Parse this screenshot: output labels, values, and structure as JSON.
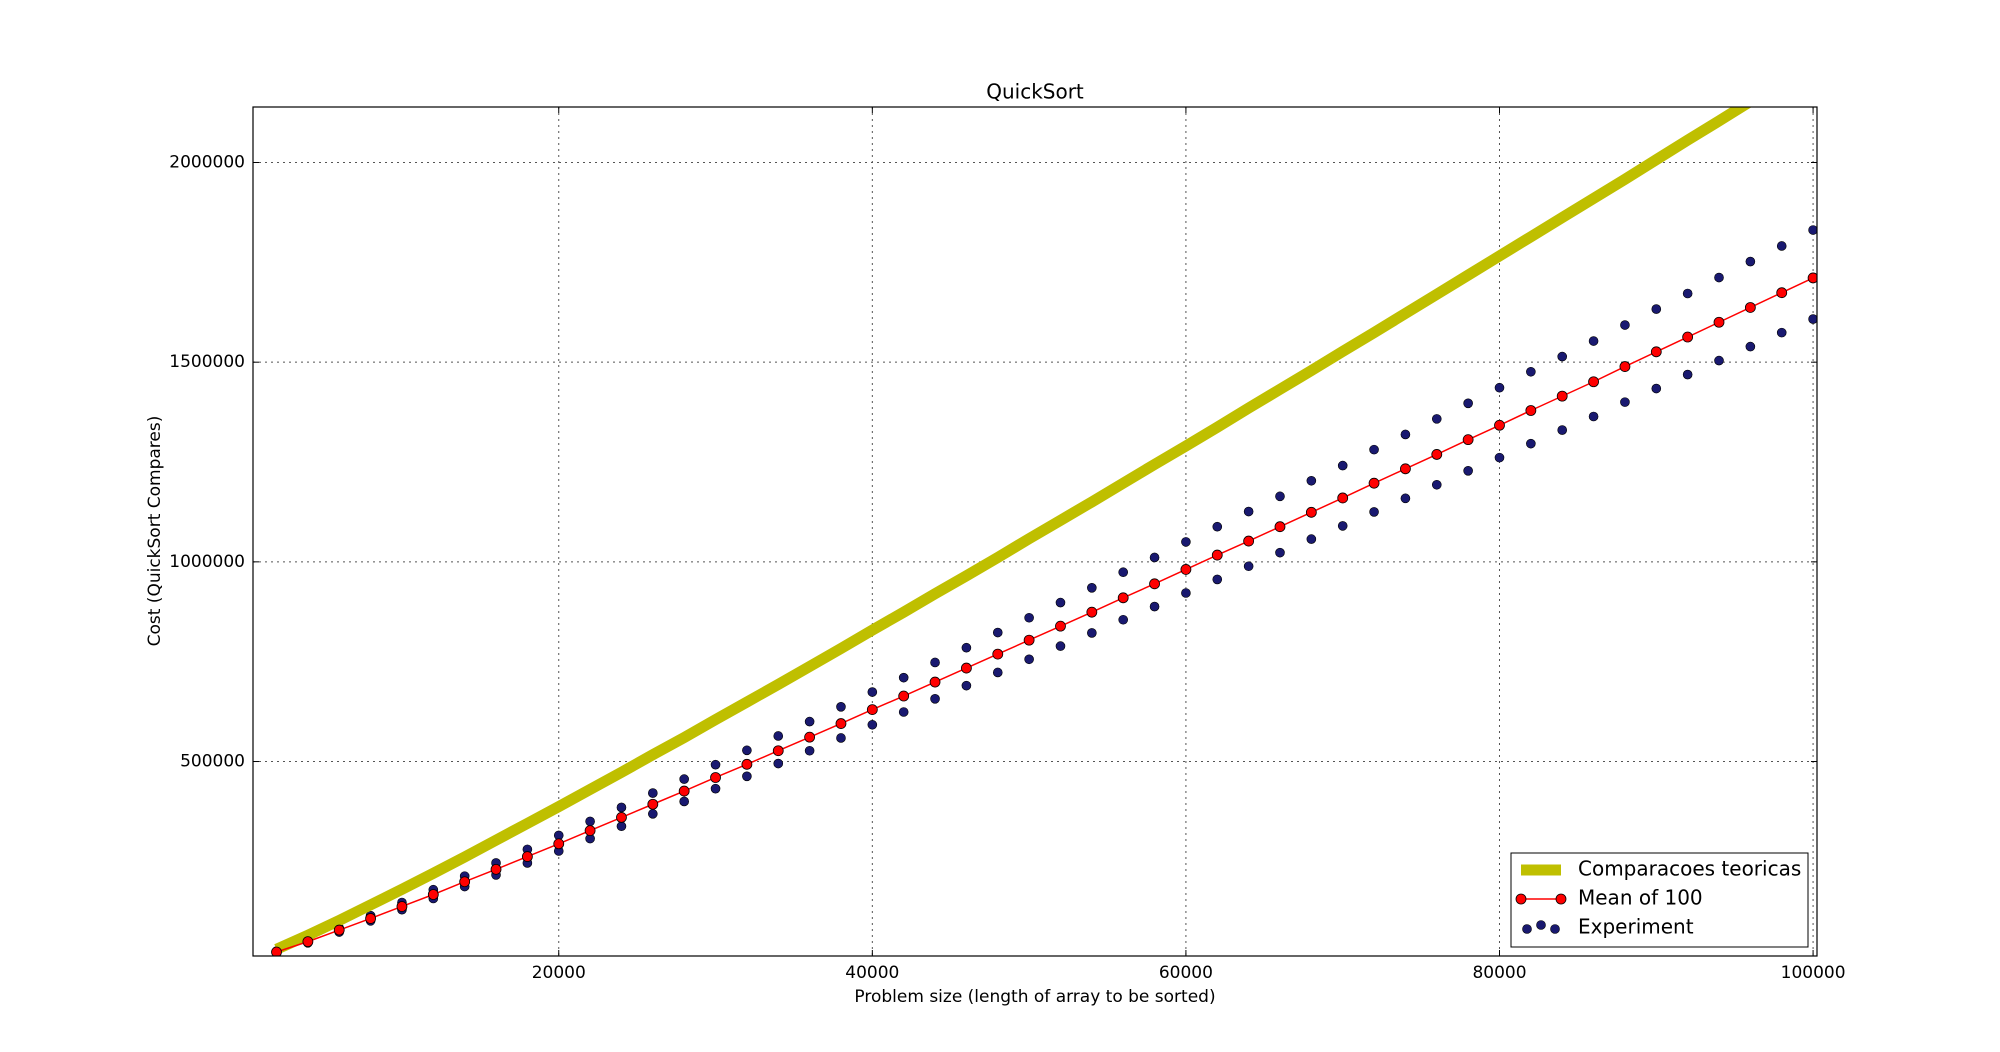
{
  "chart_data": {
    "type": "line",
    "title": "QuickSort",
    "xlabel": "Problem size (length of array to be sorted)",
    "ylabel": "Cost (QuickSort Compares)",
    "xlim": [
      500,
      100250
    ],
    "ylim": [
      13000,
      2139000
    ],
    "xticks": [
      20000,
      40000,
      60000,
      80000,
      100000
    ],
    "yticks": [
      500000,
      1000000,
      1500000,
      2000000
    ],
    "grid": true,
    "legend": "lower right",
    "x": [
      2000,
      4000,
      6000,
      8000,
      10000,
      12000,
      14000,
      16000,
      18000,
      20000,
      22000,
      24000,
      26000,
      28000,
      30000,
      32000,
      34000,
      36000,
      38000,
      40000,
      42000,
      44000,
      46000,
      48000,
      50000,
      52000,
      54000,
      56000,
      58000,
      60000,
      62000,
      64000,
      66000,
      68000,
      70000,
      72000,
      74000,
      76000,
      78000,
      80000,
      82000,
      84000,
      86000,
      88000,
      90000,
      92000,
      94000,
      96000,
      98000,
      100000
    ],
    "series": [
      {
        "name": "Comparacoes teoricas",
        "color": "#bfbf00",
        "style": "thick-line",
        "values": [
          30000,
          65000,
          102000,
          141000,
          180000,
          220000,
          261000,
          303000,
          345000,
          387000,
          430000,
          473000,
          517000,
          560000,
          605000,
          649000,
          693000,
          738000,
          783000,
          829000,
          874000,
          920000,
          965000,
          1011000,
          1058000,
          1104000,
          1150000,
          1197000,
          1244000,
          1290000,
          1337000,
          1385000,
          1432000,
          1479000,
          1527000,
          1574000,
          1622000,
          1670000,
          1718000,
          1766000,
          1814000,
          1862000,
          1910000,
          1958000,
          2007000,
          2056000,
          2104000,
          2153000,
          2202000,
          2251000
        ]
      },
      {
        "name": "Mean of 100",
        "color": "#ff0000",
        "style": "line-markers",
        "values": [
          23000,
          49000,
          78000,
          107000,
          137000,
          167000,
          199000,
          230000,
          262000,
          294000,
          327000,
          360000,
          393000,
          426000,
          460000,
          493000,
          527000,
          561000,
          595000,
          630000,
          664000,
          699000,
          734000,
          769000,
          804000,
          839000,
          874000,
          910000,
          945000,
          981000,
          1017000,
          1052000,
          1088000,
          1124000,
          1160000,
          1197000,
          1233000,
          1269000,
          1306000,
          1342000,
          1379000,
          1415000,
          1451000,
          1489000,
          1526000,
          1563000,
          1600000,
          1637000,
          1674000,
          1711000
        ]
      },
      {
        "name": "Experiment",
        "color": "#191970",
        "style": "scatter",
        "x": [
          2000,
          4000,
          6000,
          8000,
          10000,
          12000,
          14000,
          16000,
          18000,
          20000,
          22000,
          24000,
          26000,
          28000,
          30000,
          32000,
          34000,
          36000,
          38000,
          40000,
          42000,
          44000,
          46000,
          48000,
          50000,
          52000,
          54000,
          56000,
          58000,
          60000,
          62000,
          64000,
          66000,
          68000,
          70000,
          72000,
          74000,
          76000,
          78000,
          80000,
          82000,
          84000,
          86000,
          88000,
          90000,
          92000,
          94000,
          96000,
          98000,
          100000,
          2000,
          4000,
          6000,
          8000,
          10000,
          12000,
          14000,
          16000,
          18000,
          20000,
          22000,
          24000,
          26000,
          28000,
          30000,
          32000,
          34000,
          36000,
          38000,
          40000,
          42000,
          44000,
          46000,
          48000,
          50000,
          52000,
          54000,
          56000,
          58000,
          60000,
          62000,
          64000,
          66000,
          68000,
          70000,
          72000,
          74000,
          76000,
          78000,
          80000,
          82000,
          84000,
          86000,
          88000,
          90000,
          92000,
          94000,
          96000,
          98000,
          100000
        ],
        "values": [
          22000,
          46000,
          73000,
          101000,
          129000,
          157000,
          187000,
          216000,
          246000,
          276000,
          307000,
          338000,
          369000,
          400000,
          432000,
          463000,
          495000,
          527000,
          559000,
          592000,
          624000,
          657000,
          690000,
          723000,
          756000,
          789000,
          822000,
          855000,
          888000,
          922000,
          956000,
          989000,
          1023000,
          1057000,
          1090000,
          1125000,
          1159000,
          1193000,
          1228000,
          1261000,
          1296000,
          1330000,
          1364000,
          1400000,
          1434000,
          1469000,
          1504000,
          1539000,
          1574000,
          1608000,
          25000,
          52000,
          83000,
          114000,
          147000,
          179000,
          213000,
          246000,
          280000,
          315000,
          350000,
          385000,
          421000,
          456000,
          492000,
          528000,
          564000,
          600000,
          637000,
          674000,
          710000,
          748000,
          785000,
          823000,
          860000,
          898000,
          935000,
          974000,
          1011000,
          1050000,
          1088000,
          1126000,
          1164000,
          1203000,
          1241000,
          1281000,
          1319000,
          1358000,
          1397000,
          1436000,
          1476000,
          1514000,
          1553000,
          1593000,
          1633000,
          1672000,
          1712000,
          1752000,
          1791000,
          1831000
        ]
      }
    ]
  }
}
